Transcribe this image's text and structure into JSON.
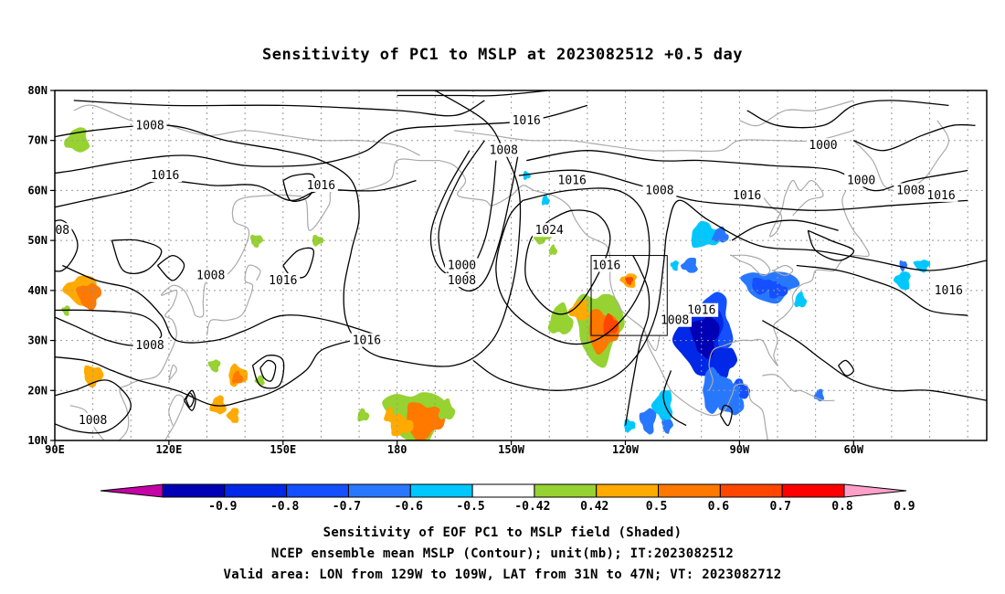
{
  "title": "Sensitivity of PC1 to MSLP at 2023082512 +0.5 day",
  "lat_labels": [
    "80N",
    "70N",
    "60N",
    "50N",
    "40N",
    "30N",
    "20N",
    "10N"
  ],
  "lon_labels": [
    "90E",
    "120E",
    "150E",
    "180",
    "150W",
    "120W",
    "90W",
    "60W"
  ],
  "contour_labels": [
    {
      "text": "1008",
      "lon": 115,
      "lat": 73
    },
    {
      "text": "1016",
      "lon": 214,
      "lat": 74
    },
    {
      "text": "1008",
      "lon": 208,
      "lat": 68
    },
    {
      "text": "1000",
      "lon": 292,
      "lat": 69
    },
    {
      "text": "1016",
      "lon": 119,
      "lat": 63
    },
    {
      "text": "1016",
      "lon": 160,
      "lat": 61
    },
    {
      "text": "1016",
      "lon": 226,
      "lat": 62
    },
    {
      "text": "1008",
      "lon": 249,
      "lat": 60
    },
    {
      "text": "1016",
      "lon": 272,
      "lat": 59
    },
    {
      "text": "1000",
      "lon": 302,
      "lat": 62
    },
    {
      "text": "1008",
      "lon": 315,
      "lat": 60
    },
    {
      "text": "1016",
      "lon": 323,
      "lat": 59
    },
    {
      "text": "08",
      "lon": 92,
      "lat": 52
    },
    {
      "text": "1024",
      "lon": 220,
      "lat": 52
    },
    {
      "text": "1000",
      "lon": 197,
      "lat": 45
    },
    {
      "text": "1008",
      "lon": 197,
      "lat": 42
    },
    {
      "text": "1008",
      "lon": 131,
      "lat": 43
    },
    {
      "text": "1016",
      "lon": 150,
      "lat": 42
    },
    {
      "text": "1016",
      "lon": 235,
      "lat": 45
    },
    {
      "text": "1016",
      "lon": 260,
      "lat": 36
    },
    {
      "text": "1008",
      "lon": 253,
      "lat": 34
    },
    {
      "text": "1016",
      "lon": 325,
      "lat": 40
    },
    {
      "text": "1016",
      "lon": 172,
      "lat": 30
    },
    {
      "text": "1008",
      "lon": 115,
      "lat": 29
    },
    {
      "text": "1008",
      "lon": 100,
      "lat": 14
    }
  ],
  "valid_box": {
    "lon_min": 231,
    "lon_max": 251,
    "lat_min": 31,
    "lat_max": 47
  },
  "colorbar": {
    "colors": [
      "#c400a6",
      "#0000b4",
      "#0028e6",
      "#1450ff",
      "#2878ff",
      "#00c8ff",
      "#ffffff",
      "#96d232",
      "#ffaa00",
      "#ff7800",
      "#ff4600",
      "#ff0000",
      "#ffa0c8"
    ],
    "labels": [
      "-0.9",
      "-0.8",
      "-0.7",
      "-0.6",
      "-0.5",
      "-0.42",
      "0.42",
      "0.5",
      "0.6",
      "0.7",
      "0.8",
      "0.9"
    ]
  },
  "captions": [
    "Sensitivity of EOF PC1 to MSLP field (Shaded)",
    "NCEP ensemble mean MSLP (Contour); unit(mb); IT:2023082512",
    "Valid area: LON from 129W to 109W, LAT from 31N to 47N; VT: 2023082712"
  ]
}
